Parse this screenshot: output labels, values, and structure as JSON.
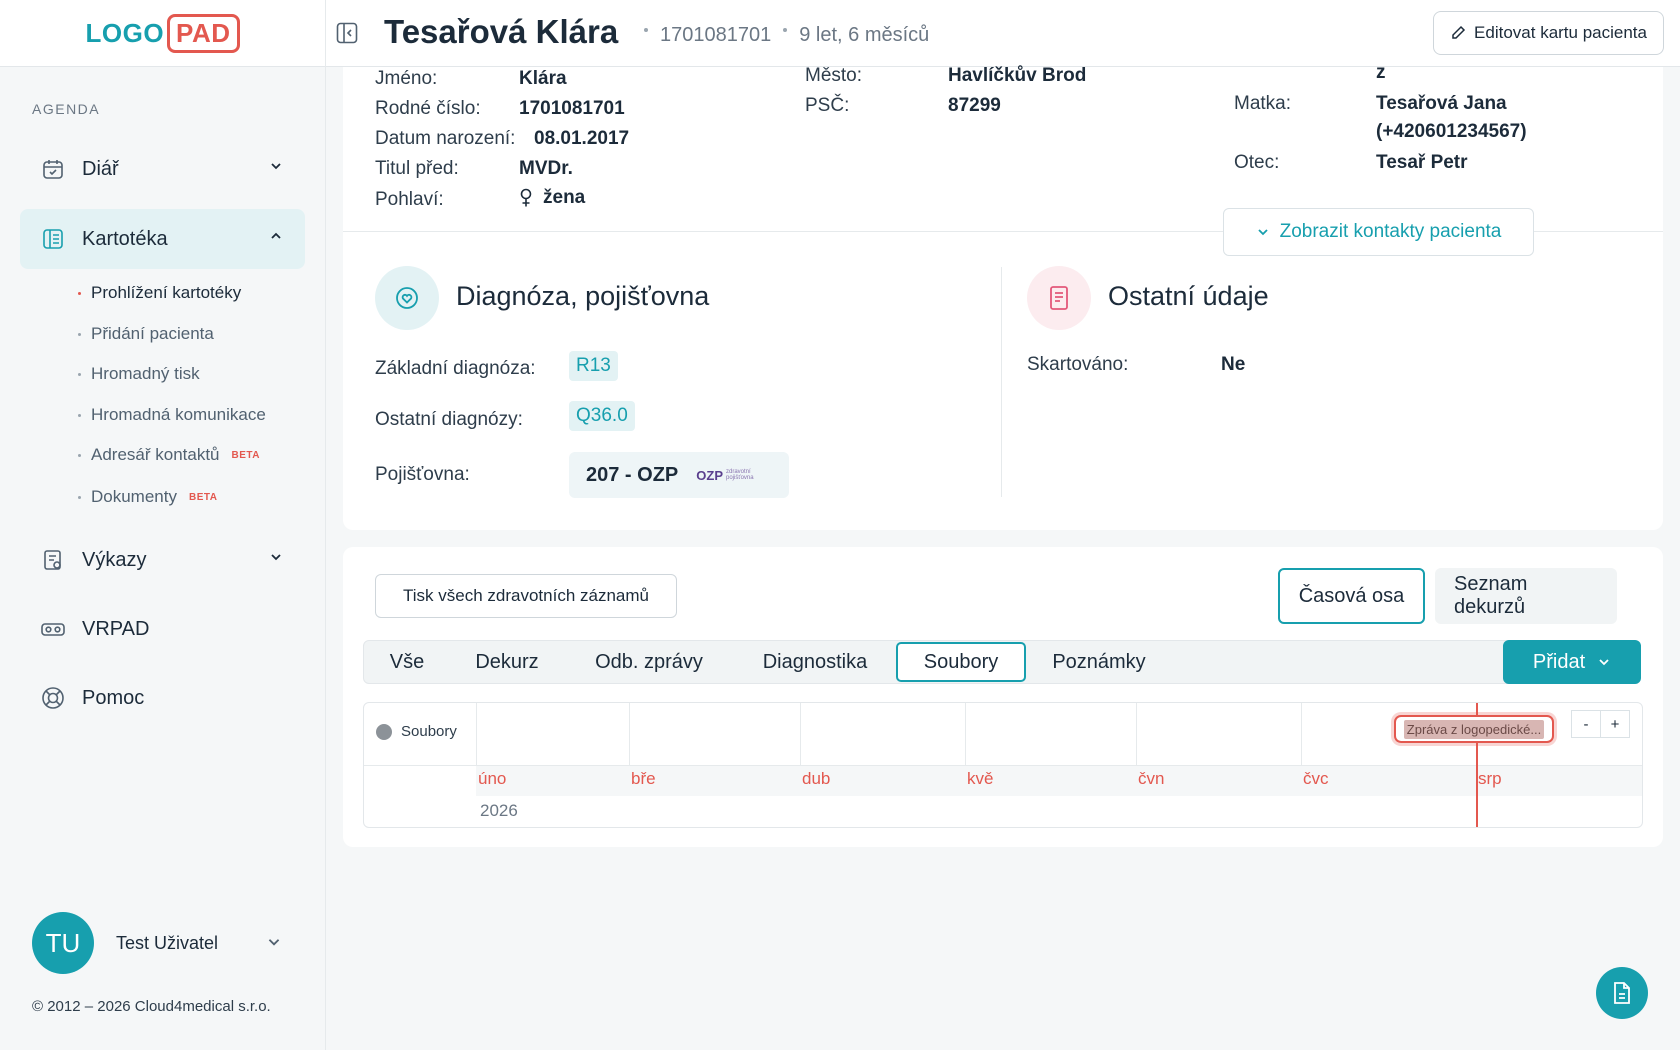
{
  "logo": {
    "part1": "LOGO",
    "part2": "PAD"
  },
  "sidebar": {
    "agenda_label": "AGENDA",
    "items": [
      {
        "label": "Diář",
        "icon": "calendar-icon"
      },
      {
        "label": "Kartotéka",
        "icon": "file-cabinet-icon"
      },
      {
        "label": "Výkazy",
        "icon": "report-icon"
      },
      {
        "label": "VRPAD",
        "icon": "vr-headset-icon"
      },
      {
        "label": "Pomoc",
        "icon": "lifebuoy-icon"
      }
    ],
    "sub_items": [
      {
        "label": "Prohlížení kartotéky"
      },
      {
        "label": "Přidání pacienta"
      },
      {
        "label": "Hromadný tisk"
      },
      {
        "label": "Hromadná komunikace"
      },
      {
        "label": "Adresář kontaktů",
        "badge": "BETA"
      },
      {
        "label": "Dokumenty",
        "badge": "BETA"
      }
    ],
    "user": {
      "initials": "TU",
      "name": "Test Uživatel"
    },
    "copyright": "© 2012 – 2026 Cloud4medical s.r.o."
  },
  "header": {
    "patient_name": "Tesařová Klára",
    "birth_number": "1701081701",
    "age": "9 let, 6 měsíců",
    "edit_button": "Editovat kartu pacienta"
  },
  "patient": {
    "jmeno_label": "Jméno:",
    "jmeno": "Klára",
    "rc_label": "Rodné číslo:",
    "rc": "1701081701",
    "dn_label": "Datum narození:",
    "dn": "08.01.2017",
    "titul_label": "Titul před:",
    "titul": "MVDr.",
    "pohlavi_label": "Pohlaví:",
    "pohlavi": "žena",
    "mesto_label": "Město:",
    "mesto": "Havlíčkův Brod",
    "psc_label": "PSČ:",
    "psc": "87299",
    "z_partial": "z",
    "matka_label": "Matka:",
    "matka_name": "Tesařová Jana",
    "matka_phone": "(+420601234567)",
    "otec_label": "Otec:",
    "otec": "Tesař Petr",
    "contacts_button": "Zobrazit kontakty pacienta"
  },
  "diagnosis": {
    "title": "Diagnóza, pojišťovna",
    "zakladni_label": "Základní diagnóza:",
    "zakladni": "R13",
    "ostatni_label": "Ostatní diagnózy:",
    "ostatni": "Q36.0",
    "pojistovna_label": "Pojišťovna:",
    "pojistovna": "207 - OZP",
    "ozp_logo": "OZP",
    "ozp_logo_sub": "zdravotní pojišťovna"
  },
  "other": {
    "title": "Ostatní údaje",
    "skartovano_label": "Skartováno:",
    "skartovano": "Ne"
  },
  "records": {
    "print_button": "Tisk všech zdravotních záznamů",
    "view_timeline": "Časová osa",
    "view_list": "Seznam dekurzů",
    "tabs": [
      "Vše",
      "Dekurz",
      "Odb. zprávy",
      "Diagnostika",
      "Soubory",
      "Poznámky"
    ],
    "active_tab": "Soubory",
    "add_button": "Přidat"
  },
  "timeline": {
    "legend": "Soubory",
    "months": [
      "úno",
      "bře",
      "dub",
      "kvě",
      "čvn",
      "čvc",
      "srp"
    ],
    "year": "2026",
    "event": "Zpráva z logopedické...",
    "zoom_out": "-",
    "zoom_in": "+"
  },
  "colors": {
    "accent": "#179fae",
    "brand_red": "#e3584f"
  }
}
